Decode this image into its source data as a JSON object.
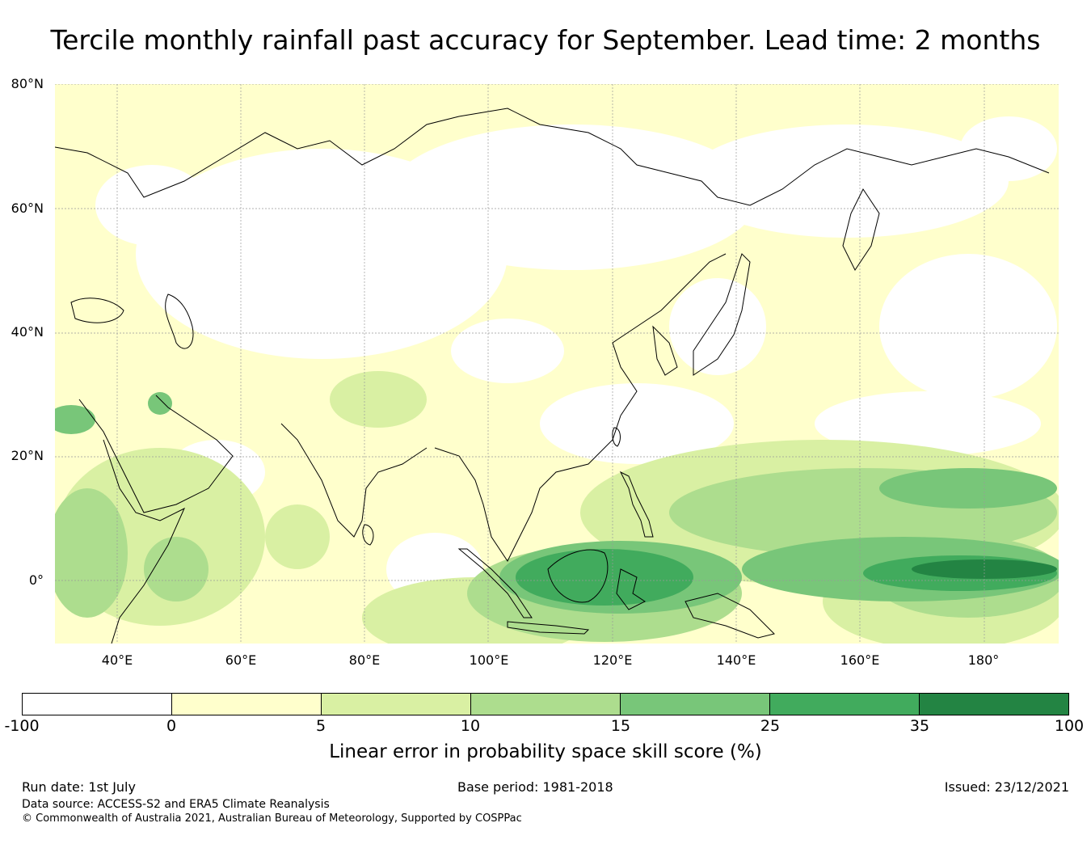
{
  "title": "Tercile monthly rainfall past accuracy for September. Lead time: 2 months",
  "map": {
    "lat_labels": [
      "80°N",
      "60°N",
      "40°N",
      "20°N",
      "0°"
    ],
    "lon_labels": [
      "40°E",
      "60°E",
      "80°E",
      "100°E",
      "120°E",
      "140°E",
      "160°E",
      "180°"
    ],
    "region": "Asia and western Pacific",
    "grid": true
  },
  "colorbar": {
    "ticks": [
      "-100",
      "0",
      "5",
      "10",
      "15",
      "25",
      "35",
      "100"
    ],
    "colors": [
      "#ffffff",
      "#ffffcc",
      "#d9f0a3",
      "#addd8e",
      "#78c679",
      "#41ab5d",
      "#238443"
    ],
    "label": "Linear error in probability space skill score (%)"
  },
  "footer": {
    "run_date": "Run date: 1st July",
    "base_period": "Base period: 1981-2018",
    "issued": "Issued: 23/12/2021",
    "data_source": "Data source: ACCESS-S2 and ERA5 Climate Reanalysis",
    "copyright": "© Commonwealth of Australia 2021, Australian Bureau of Meteorology, Supported by COSPPac"
  }
}
